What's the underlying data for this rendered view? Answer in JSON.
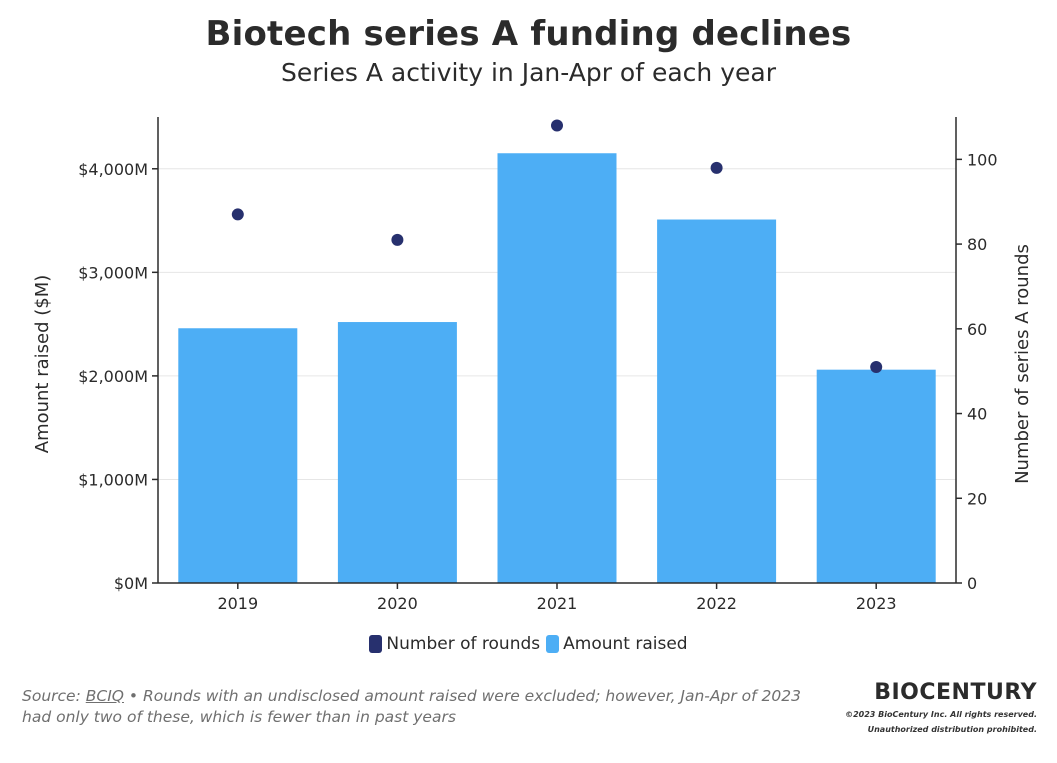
{
  "header": {
    "title": "Biotech series A funding declines",
    "subtitle": "Series A activity in Jan-Apr of each year"
  },
  "chart_data": {
    "type": "bar",
    "title": "Biotech series A funding declines",
    "subtitle": "Series A activity in Jan-Apr of each year",
    "categories": [
      "2019",
      "2020",
      "2021",
      "2022",
      "2023"
    ],
    "series": [
      {
        "name": "Amount raised",
        "type": "bar",
        "axis": "left",
        "color": "#4daef5",
        "values": [
          2460,
          2520,
          4150,
          3510,
          2060
        ]
      },
      {
        "name": "Number of rounds",
        "type": "scatter",
        "axis": "right",
        "color": "#27306e",
        "values": [
          87,
          81,
          108,
          98,
          51
        ]
      }
    ],
    "left_axis": {
      "label": "Amount raised ($M)",
      "ylim": [
        0,
        4500
      ],
      "ticks": [
        0,
        1000,
        2000,
        3000,
        4000
      ],
      "tick_labels": [
        "$0M",
        "$1,000M",
        "$2,000M",
        "$3,000M",
        "$4,000M"
      ]
    },
    "right_axis": {
      "label": "Number of series A rounds",
      "ylim": [
        0,
        110
      ],
      "ticks": [
        0,
        20,
        40,
        60,
        80,
        100
      ],
      "tick_labels": [
        "0",
        "20",
        "40",
        "60",
        "80",
        "100"
      ]
    },
    "grid": true,
    "legend_position": "bottom"
  },
  "legend": {
    "items": [
      {
        "label": "Number of rounds",
        "color": "#27306e"
      },
      {
        "label": "Amount raised",
        "color": "#4daef5"
      }
    ]
  },
  "footer": {
    "source_prefix": "Source: ",
    "source_link": "BCIQ",
    "note": " • Rounds with an undisclosed amount raised were excluded; however, Jan-Apr of 2023 had only two of these, which is fewer than in past years"
  },
  "brand": {
    "name": "BIOCENTURY",
    "copyright": "©2023 BioCentury Inc. All rights reserved.",
    "notice": "Unauthorized distribution prohibited."
  }
}
